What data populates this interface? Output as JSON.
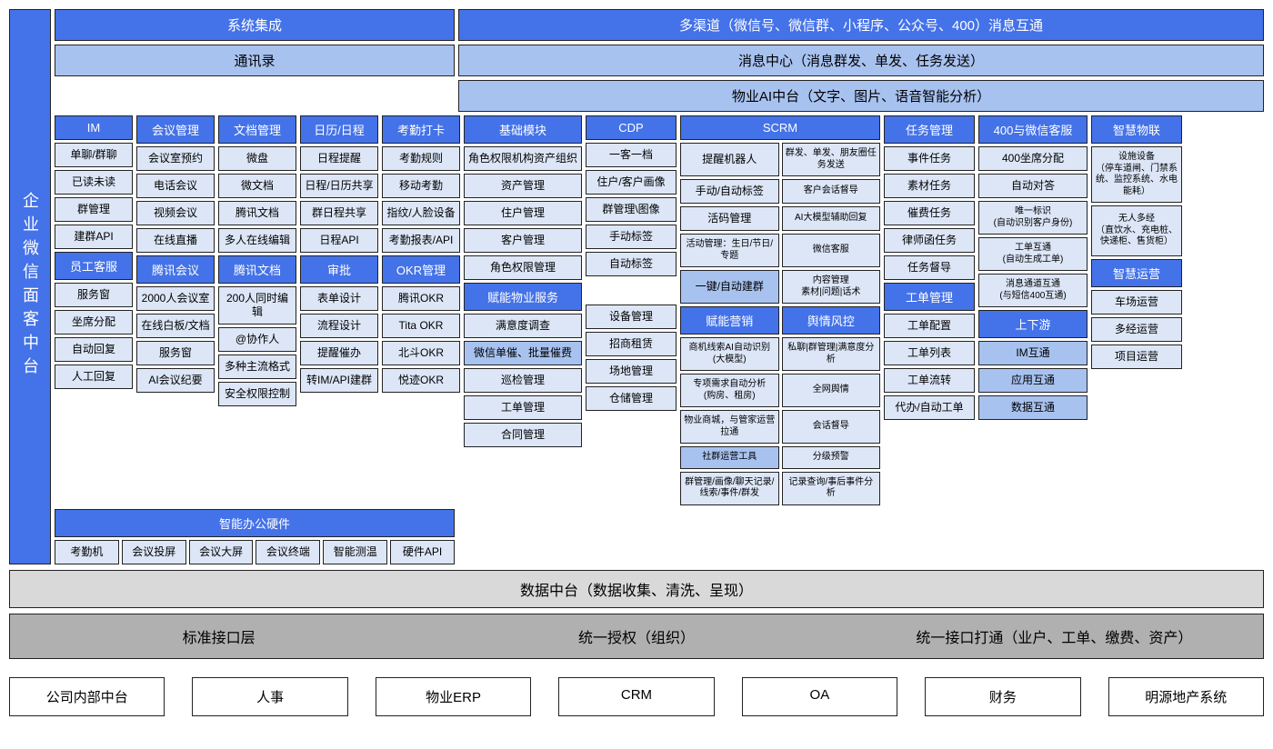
{
  "colors": {
    "primary": "#4472e8",
    "light": "#a8c2f0",
    "cell": "#dce6f7",
    "gray1": "#d9d9d9",
    "gray2": "#b0b0b0",
    "border": "#222222"
  },
  "vbar": "企业微信面客中台",
  "top1": {
    "a": "系统集成",
    "b": "多渠道（微信号、微信群、小程序、公众号、400）消息互通"
  },
  "top2": {
    "a": "通讯录",
    "b": "消息中心（消息群发、单发、任务发送）"
  },
  "top3": "物业AI中台（文字、图片、语音智能分析）",
  "cols": {
    "im": {
      "h": "IM",
      "i": [
        "单聊/群聊",
        "已读未读",
        "群管理",
        "建群API"
      ],
      "h2": "员工客服",
      "i2": [
        "服务窗",
        "坐席分配",
        "自动回复",
        "人工回复"
      ]
    },
    "meet": {
      "h": "会议管理",
      "i": [
        "会议室预约",
        "电话会议",
        "视频会议",
        "在线直播"
      ],
      "h2": "腾讯会议",
      "i2": [
        "2000人会议室",
        "在线白板/文档",
        "服务窗",
        "AI会议纪要"
      ]
    },
    "doc": {
      "h": "文档管理",
      "i": [
        "微盘",
        "微文档",
        "腾讯文档",
        "多人在线编辑"
      ],
      "h2": "腾讯文档",
      "i2": [
        "200人同时编辑",
        "@协作人",
        "多种主流格式",
        "安全权限控制"
      ]
    },
    "cal": {
      "h": "日历/日程",
      "i": [
        "日程提醒",
        "日程/日历共享",
        "群日程共享",
        "日程API"
      ],
      "h2": "审批",
      "i2": [
        "表单设计",
        "流程设计",
        "提醒催办",
        "转IM/API建群"
      ]
    },
    "att": {
      "h": "考勤打卡",
      "i": [
        "考勤规则",
        "移动考勤",
        "指纹/人脸设备",
        "考勤报表/API"
      ],
      "h2": "OKR管理",
      "i2": [
        "腾讯OKR",
        "Tita OKR",
        "北斗OKR",
        "悦迹OKR"
      ]
    },
    "base": {
      "h": "基础模块",
      "i": [
        "角色权限机构资产组织",
        "资产管理",
        "住户管理",
        "客户管理",
        "角色权限管理"
      ],
      "h2": "赋能物业服务",
      "i2": [
        "满意度调查",
        "微信单催、批量催费",
        "巡检管理",
        "工单管理",
        "合同管理"
      ]
    },
    "cdp": {
      "h": "CDP",
      "i": [
        "一客一档",
        "住户/客户画像",
        "群管理\\图像",
        "手动标签",
        "自动标签"
      ],
      "i2": [
        "设备管理",
        "招商租赁",
        "场地管理",
        "仓储管理"
      ]
    },
    "scrm": {
      "h": "SCRM",
      "l": [
        "提醒机器人",
        "手动/自动标签",
        "活码管理",
        "活动管理：生日/节日/专题",
        "一键/自动建群"
      ],
      "r": [
        "群发、单发、朋友圈任务发送",
        "客户会话督导",
        "AI大模型辅助回复",
        "微信客服",
        "内容管理\\n素材|问题|话术"
      ],
      "h2l": "赋能营销",
      "l2": [
        "商机线索AI自动识别\\n(大模型)",
        "专项需求自动分析\\n(购房、租房)",
        "物业商城，与管家运营拉通",
        "社群运营工具",
        "群管理/画像/聊天记录/线索/事件/群发"
      ],
      "h2r": "舆情风控",
      "r2": [
        "私聊|群管理|满意度分析",
        "全网舆情",
        "会话督导",
        "分级预警",
        "记录查询/事后事件分析"
      ]
    },
    "task": {
      "h": "任务管理",
      "i": [
        "事件任务",
        "素材任务",
        "催费任务",
        "律师函任务",
        "任务督导"
      ],
      "h2": "工单管理",
      "i2": [
        "工单配置",
        "工单列表",
        "工单流转",
        "代办/自动工单"
      ]
    },
    "c400": {
      "h": "400与微信客服",
      "i": [
        "400坐席分配",
        "自动对答",
        "唯一标识\\n(自动识别客户身份)",
        "工单互通\\n(自动生成工单)",
        "消息通道互通\\n(与短信400互通)"
      ],
      "h2": "上下游",
      "i2": [
        "IM互通",
        "应用互通",
        "数据互通"
      ]
    },
    "iot": {
      "h": "智慧物联",
      "i": [
        "设施设备\\n（停车道闸、门禁系统、监控系统、水电能耗）",
        "无人多经\\n（直饮水、充电桩、快递柜、售货柜）"
      ],
      "h2": "智慧运营",
      "i2": [
        "车场运营",
        "多经运营",
        "项目运营"
      ]
    }
  },
  "hw": {
    "h": "智能办公硬件",
    "i": [
      "考勤机",
      "会议投屏",
      "会议大屏",
      "会议终端",
      "智能测温",
      "硬件API"
    ]
  },
  "footer_data": "数据中台（数据收集、清洗、呈现）",
  "footer_api": [
    "标准接口层",
    "统一授权（组织）",
    "统一接口打通（业户、工单、缴费、资产）"
  ],
  "footer_sys": [
    "公司内部中台",
    "人事",
    "物业ERP",
    "CRM",
    "OA",
    "财务",
    "明源地产系统"
  ]
}
